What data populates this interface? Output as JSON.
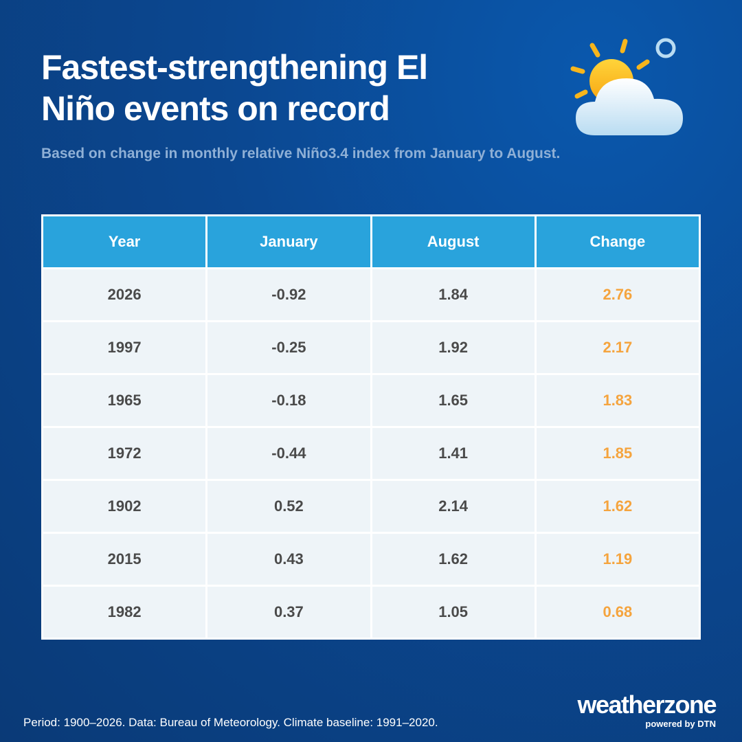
{
  "header": {
    "title": "Fastest-strengthening El Niño events on record",
    "subtitle": "Based on change in monthly relative Niño3.4 index from January to August."
  },
  "table": {
    "columns": [
      "Year",
      "January",
      "August",
      "Change"
    ],
    "rows": [
      [
        "2026",
        "-0.92",
        "1.84",
        "2.76"
      ],
      [
        "1997",
        "-0.25",
        "1.92",
        "2.17"
      ],
      [
        "1965",
        "-0.18",
        "1.65",
        "1.83"
      ],
      [
        "1972",
        "-0.44",
        "1.41",
        "1.85"
      ],
      [
        "1902",
        "0.52",
        "2.14",
        "1.62"
      ],
      [
        "2015",
        "0.43",
        "1.62",
        "1.19"
      ],
      [
        "1982",
        "0.37",
        "1.05",
        "0.68"
      ]
    ]
  },
  "footer": {
    "note": "Period: 1900–2026. Data: Bureau of Meteorology. Climate baseline: 1991–2020."
  },
  "logo": {
    "name": "weatherzone",
    "tagline": "powered by DTN"
  }
}
